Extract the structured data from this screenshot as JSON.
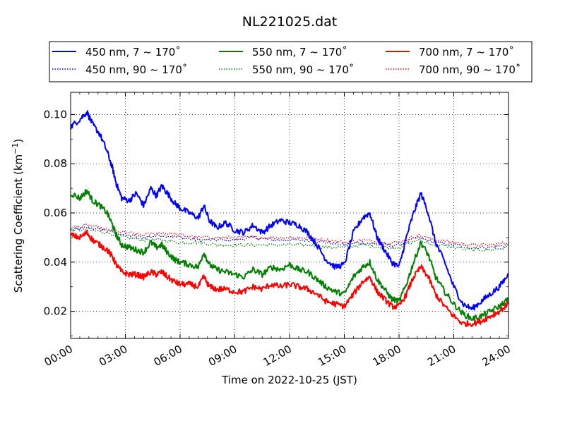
{
  "chart_data": {
    "type": "line",
    "title": "NL221025.dat",
    "xlabel": "Time on 2022-10-25 (JST)",
    "ylabel_main": "Scattering Coefficient (km",
    "ylabel_sup": "−1",
    "ylabel_end": ")",
    "xlim": [
      0,
      24
    ],
    "ylim": [
      0.009,
      0.109
    ],
    "x_ticks": [
      {
        "value": 0,
        "label": "00:00"
      },
      {
        "value": 3,
        "label": "03:00"
      },
      {
        "value": 6,
        "label": "06:00"
      },
      {
        "value": 9,
        "label": "09:00"
      },
      {
        "value": 12,
        "label": "12:00"
      },
      {
        "value": 15,
        "label": "15:00"
      },
      {
        "value": 18,
        "label": "18:00"
      },
      {
        "value": 21,
        "label": "21:00"
      },
      {
        "value": 24,
        "label": "24:00"
      }
    ],
    "y_ticks": [
      {
        "value": 0.02,
        "label": "0.02"
      },
      {
        "value": 0.04,
        "label": "0.04"
      },
      {
        "value": 0.06,
        "label": "0.06"
      },
      {
        "value": 0.08,
        "label": "0.08"
      },
      {
        "value": 0.1,
        "label": "0.10"
      }
    ],
    "grid": true,
    "legend_position": "top, above plot",
    "series": [
      {
        "name": "450 nm, 7 ~ 170˚",
        "color": "#0000ff",
        "style": "solid",
        "x": [
          0,
          0.5,
          0.9,
          1.2,
          1.6,
          2.0,
          2.3,
          2.5,
          2.8,
          3.2,
          3.6,
          4.0,
          4.4,
          4.7,
          5.0,
          5.3,
          5.7,
          6.0,
          6.5,
          7.0,
          7.3,
          7.6,
          8.0,
          8.5,
          9.0,
          9.5,
          10.0,
          10.5,
          11.0,
          11.5,
          12.0,
          12.5,
          13.0,
          13.5,
          14.0,
          14.5,
          15.0,
          15.5,
          16.0,
          16.4,
          16.8,
          17.2,
          17.6,
          18.0,
          18.4,
          18.8,
          19.2,
          19.6,
          20.0,
          20.5,
          21.0,
          21.5,
          22.0,
          22.5,
          23.0,
          23.5,
          24.0
        ],
        "y": [
          0.095,
          0.098,
          0.101,
          0.096,
          0.092,
          0.085,
          0.078,
          0.072,
          0.066,
          0.065,
          0.068,
          0.063,
          0.07,
          0.067,
          0.071,
          0.068,
          0.064,
          0.062,
          0.06,
          0.058,
          0.063,
          0.057,
          0.054,
          0.056,
          0.053,
          0.052,
          0.055,
          0.052,
          0.055,
          0.057,
          0.056,
          0.055,
          0.052,
          0.047,
          0.041,
          0.038,
          0.039,
          0.052,
          0.058,
          0.06,
          0.05,
          0.045,
          0.04,
          0.038,
          0.05,
          0.06,
          0.068,
          0.06,
          0.048,
          0.04,
          0.03,
          0.023,
          0.021,
          0.024,
          0.027,
          0.03,
          0.035
        ]
      },
      {
        "name": "450 nm, 90 ~ 170˚",
        "color": "#0000ff",
        "style": "dotted",
        "x": [
          0,
          1,
          2,
          3,
          4,
          5,
          6,
          7,
          8,
          9,
          10,
          11,
          12,
          13,
          14,
          15,
          16,
          17,
          18,
          19,
          20,
          21,
          22,
          23,
          24
        ],
        "y": [
          0.053,
          0.054,
          0.053,
          0.051,
          0.05,
          0.051,
          0.05,
          0.049,
          0.049,
          0.049,
          0.05,
          0.049,
          0.049,
          0.049,
          0.048,
          0.047,
          0.048,
          0.047,
          0.047,
          0.05,
          0.048,
          0.047,
          0.046,
          0.046,
          0.047
        ]
      },
      {
        "name": "550 nm, 7 ~ 170˚",
        "color": "#008000",
        "style": "solid",
        "x": [
          0,
          0.5,
          0.9,
          1.2,
          1.6,
          2.0,
          2.3,
          2.5,
          2.8,
          3.2,
          3.6,
          4.0,
          4.4,
          4.7,
          5.0,
          5.3,
          5.7,
          6.0,
          6.5,
          7.0,
          7.3,
          7.6,
          8.0,
          8.5,
          9.0,
          9.5,
          10.0,
          10.5,
          11.0,
          11.5,
          12.0,
          12.5,
          13.0,
          13.5,
          14.0,
          14.5,
          15.0,
          15.5,
          16.0,
          16.4,
          16.8,
          17.2,
          17.6,
          18.0,
          18.4,
          18.8,
          19.2,
          19.6,
          20.0,
          20.5,
          21.0,
          21.5,
          22.0,
          22.5,
          23.0,
          23.5,
          24.0
        ],
        "y": [
          0.068,
          0.066,
          0.069,
          0.065,
          0.063,
          0.06,
          0.055,
          0.051,
          0.047,
          0.046,
          0.045,
          0.044,
          0.048,
          0.046,
          0.047,
          0.044,
          0.041,
          0.04,
          0.039,
          0.038,
          0.044,
          0.039,
          0.037,
          0.036,
          0.035,
          0.034,
          0.037,
          0.035,
          0.038,
          0.037,
          0.039,
          0.037,
          0.036,
          0.033,
          0.03,
          0.028,
          0.027,
          0.034,
          0.038,
          0.04,
          0.033,
          0.029,
          0.025,
          0.024,
          0.031,
          0.04,
          0.048,
          0.043,
          0.034,
          0.028,
          0.023,
          0.019,
          0.017,
          0.018,
          0.02,
          0.022,
          0.025
        ]
      },
      {
        "name": "550 nm, 90 ~ 170˚",
        "color": "#008000",
        "style": "dotted",
        "x": [
          0,
          1,
          2,
          3,
          4,
          5,
          6,
          7,
          8,
          9,
          10,
          11,
          12,
          13,
          14,
          15,
          16,
          17,
          18,
          19,
          20,
          21,
          22,
          23,
          24
        ],
        "y": [
          0.053,
          0.053,
          0.052,
          0.05,
          0.049,
          0.049,
          0.048,
          0.048,
          0.047,
          0.047,
          0.047,
          0.047,
          0.047,
          0.047,
          0.046,
          0.046,
          0.047,
          0.046,
          0.046,
          0.049,
          0.047,
          0.046,
          0.045,
          0.045,
          0.046
        ]
      },
      {
        "name": "700 nm, 7 ~ 170˚",
        "color": "#ff0000",
        "style": "solid",
        "x": [
          0,
          0.5,
          0.9,
          1.2,
          1.6,
          2.0,
          2.3,
          2.5,
          2.8,
          3.2,
          3.6,
          4.0,
          4.4,
          4.7,
          5.0,
          5.3,
          5.7,
          6.0,
          6.5,
          7.0,
          7.3,
          7.6,
          8.0,
          8.5,
          9.0,
          9.5,
          10.0,
          10.5,
          11.0,
          11.5,
          12.0,
          12.5,
          13.0,
          13.5,
          14.0,
          14.5,
          15.0,
          15.5,
          16.0,
          16.4,
          16.8,
          17.2,
          17.6,
          18.0,
          18.4,
          18.8,
          19.2,
          19.6,
          20.0,
          20.5,
          21.0,
          21.5,
          22.0,
          22.5,
          23.0,
          23.5,
          24.0
        ],
        "y": [
          0.051,
          0.05,
          0.052,
          0.049,
          0.047,
          0.045,
          0.042,
          0.039,
          0.036,
          0.035,
          0.035,
          0.034,
          0.036,
          0.035,
          0.036,
          0.034,
          0.032,
          0.031,
          0.031,
          0.03,
          0.034,
          0.03,
          0.029,
          0.029,
          0.028,
          0.028,
          0.03,
          0.029,
          0.031,
          0.03,
          0.031,
          0.03,
          0.029,
          0.027,
          0.024,
          0.023,
          0.022,
          0.027,
          0.032,
          0.034,
          0.028,
          0.025,
          0.022,
          0.022,
          0.027,
          0.034,
          0.038,
          0.034,
          0.027,
          0.022,
          0.018,
          0.015,
          0.015,
          0.016,
          0.018,
          0.02,
          0.023
        ]
      },
      {
        "name": "700 nm, 90 ~ 170˚",
        "color": "#ff0000",
        "style": "dotted",
        "x": [
          0,
          1,
          2,
          3,
          4,
          5,
          6,
          7,
          8,
          9,
          10,
          11,
          12,
          13,
          14,
          15,
          16,
          17,
          18,
          19,
          20,
          21,
          22,
          23,
          24
        ],
        "y": [
          0.054,
          0.055,
          0.053,
          0.052,
          0.051,
          0.052,
          0.051,
          0.05,
          0.05,
          0.05,
          0.05,
          0.05,
          0.05,
          0.05,
          0.049,
          0.048,
          0.049,
          0.048,
          0.048,
          0.051,
          0.049,
          0.048,
          0.047,
          0.047,
          0.048
        ]
      }
    ]
  }
}
